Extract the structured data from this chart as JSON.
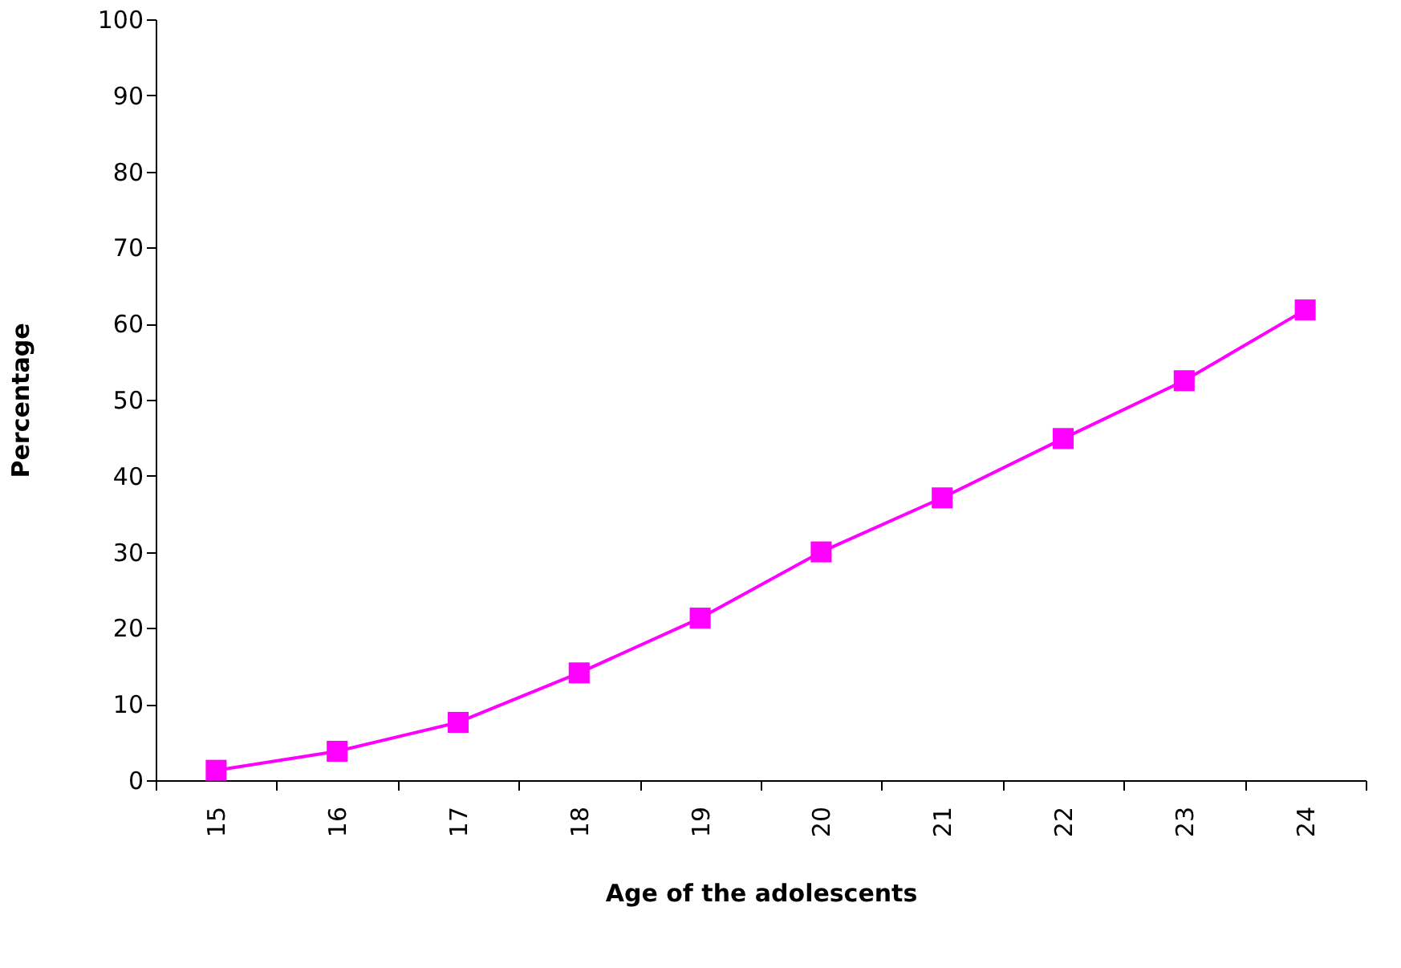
{
  "chart_data": {
    "type": "line",
    "xlabel": "Age of the adolescents",
    "ylabel": "Percentage",
    "categories": [
      "15",
      "16",
      "17",
      "18",
      "19",
      "20",
      "21",
      "22",
      "23",
      "24"
    ],
    "series": [
      {
        "color": "#ff00ff",
        "values": [
          1.3,
          3.8,
          7.6,
          14.1,
          21.3,
          30.0,
          37.1,
          44.9,
          52.5,
          61.8
        ]
      }
    ],
    "ylim": [
      0,
      100
    ],
    "yticks": [
      0,
      10,
      20,
      30,
      40,
      50,
      60,
      70,
      80,
      90,
      100
    ],
    "grid": false,
    "marker": "square",
    "line_style": "solid"
  }
}
